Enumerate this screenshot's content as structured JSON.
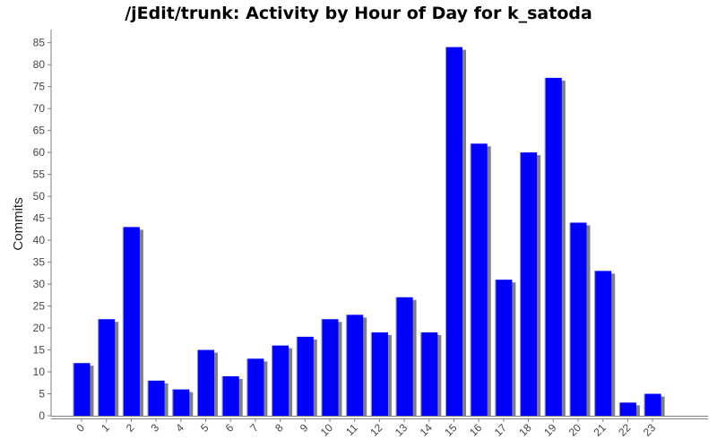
{
  "chart_data": {
    "type": "bar",
    "title": "/jEdit/trunk: Activity by Hour of Day for k_satoda",
    "xlabel": "",
    "ylabel": "Commits",
    "categories": [
      "0",
      "1",
      "2",
      "3",
      "4",
      "5",
      "6",
      "7",
      "8",
      "9",
      "10",
      "11",
      "12",
      "13",
      "14",
      "15",
      "16",
      "17",
      "18",
      "19",
      "20",
      "21",
      "22",
      "23"
    ],
    "series": [
      {
        "values": [
          12,
          22,
          43,
          8,
          6,
          15,
          9,
          13,
          16,
          18,
          22,
          23,
          19,
          27,
          19,
          84,
          62,
          31,
          60,
          77,
          44,
          33,
          3,
          5
        ]
      }
    ],
    "ylim": [
      0,
      88
    ],
    "yticks": [
      0,
      5,
      10,
      15,
      20,
      25,
      30,
      35,
      40,
      45,
      50,
      55,
      60,
      65,
      70,
      75,
      80,
      85
    ],
    "grid": false,
    "legend": "none",
    "colors": {
      "bar": "#0000ff",
      "bar_shadow": "#808080",
      "axis": "#808080",
      "text": "#444444"
    }
  }
}
